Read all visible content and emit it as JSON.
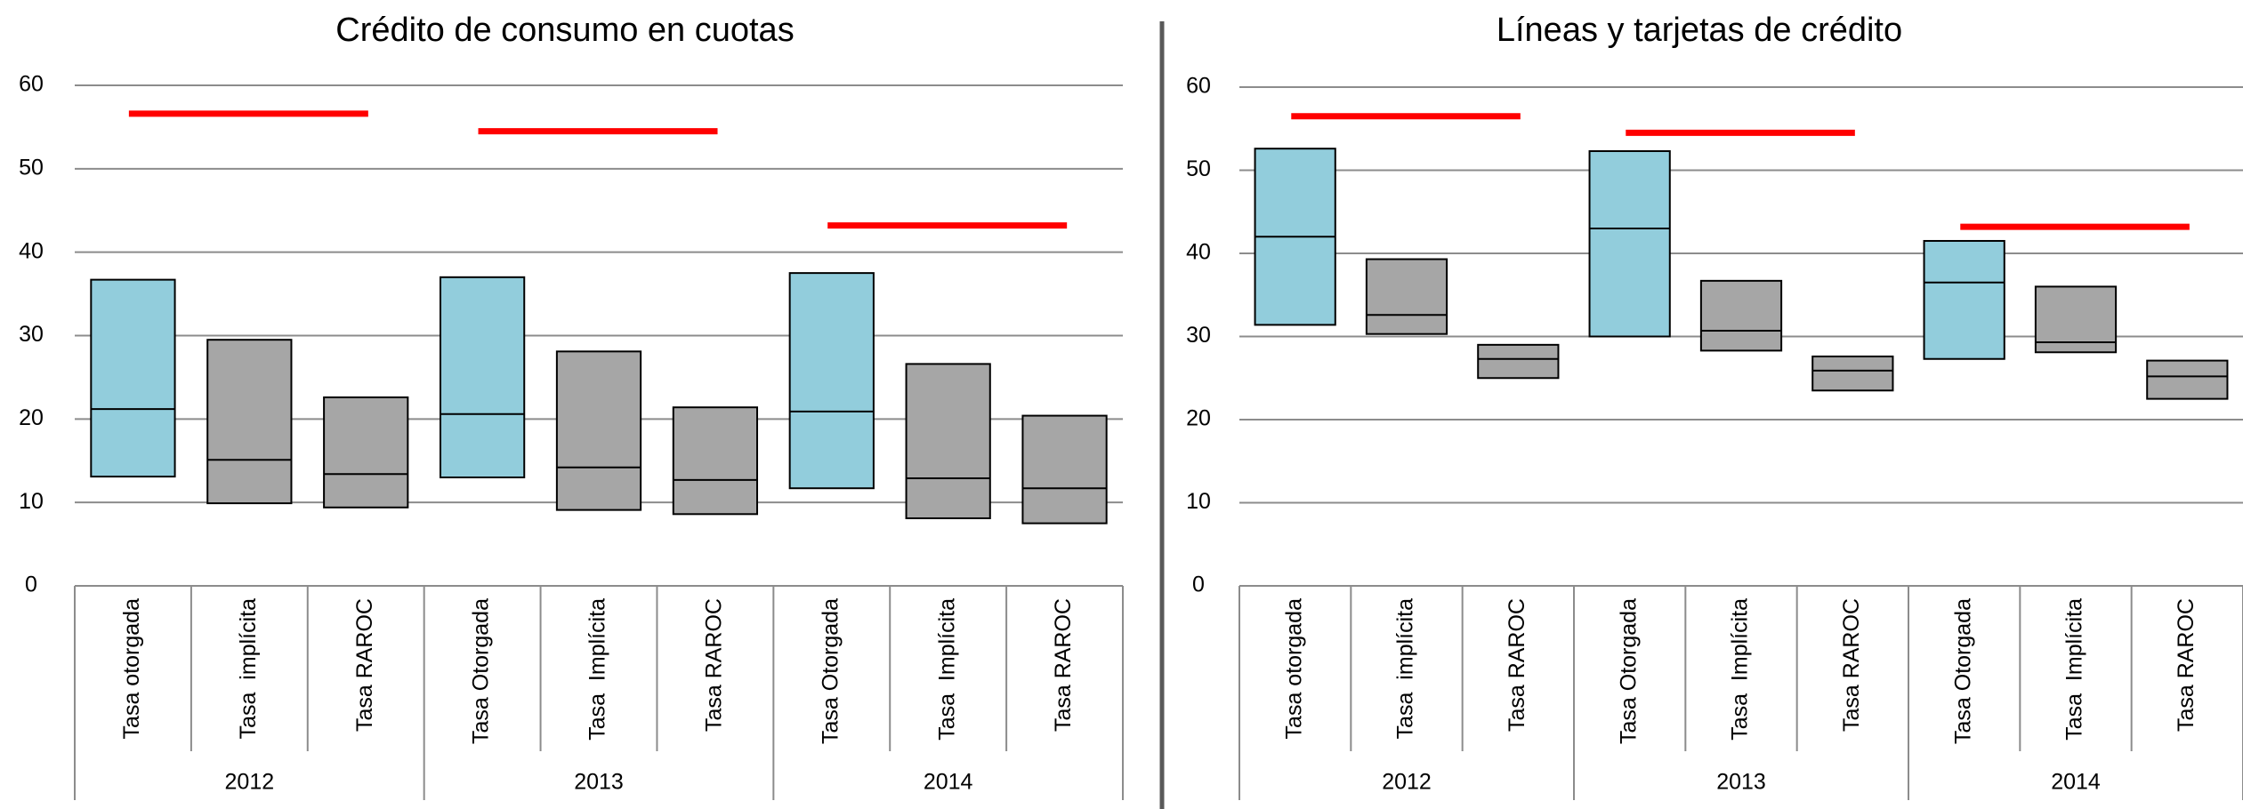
{
  "chart_data": [
    {
      "type": "floating-box",
      "title": "Crédito de consumo en cuotas",
      "groups": [
        "2012",
        "2013",
        "2014"
      ],
      "categories": [
        "Tasa otorgada",
        "Tasa  implícita",
        "Tasa RAROC",
        "Tasa Otorgada",
        "Tasa  Implícita",
        "Tasa RAROC",
        "Tasa Otorgada",
        "Tasa  Implícita",
        "Tasa RAROC"
      ],
      "high": [
        36.7,
        29.5,
        22.6,
        37.0,
        28.1,
        21.4,
        37.5,
        26.6,
        20.4
      ],
      "median": [
        21.2,
        15.1,
        13.4,
        20.6,
        14.2,
        12.7,
        20.9,
        12.9,
        11.7
      ],
      "low": [
        13.1,
        9.9,
        9.4,
        13.0,
        9.1,
        8.6,
        11.7,
        8.1,
        7.5
      ],
      "box_colors": [
        "#92cddc",
        "#a6a6a6",
        "#a6a6a6",
        "#92cddc",
        "#a6a6a6",
        "#a6a6a6",
        "#92cddc",
        "#a6a6a6",
        "#a6a6a6"
      ],
      "max_rate": {
        "color": "#ff0000",
        "values": [
          56.6,
          54.5,
          43.2
        ]
      },
      "ylim": [
        0,
        60
      ],
      "yticks": [
        0,
        10,
        20,
        30,
        40,
        50,
        60
      ],
      "grid": true
    },
    {
      "type": "floating-box",
      "title": "Líneas y tarjetas de crédito",
      "groups": [
        "2012",
        "2013",
        "2014"
      ],
      "categories": [
        "Tasa otorgada",
        "Tasa  implícita",
        "Tasa RAROC",
        "Tasa Otorgada",
        "Tasa  Implícita",
        "Tasa RAROC",
        "Tasa Otorgada",
        "Tasa  Implícita",
        "Tasa RAROC"
      ],
      "high": [
        52.6,
        39.3,
        29.0,
        52.3,
        36.7,
        27.6,
        41.5,
        36.0,
        27.1
      ],
      "median": [
        42.0,
        32.6,
        27.3,
        43.0,
        30.7,
        25.9,
        36.5,
        29.3,
        25.2
      ],
      "low": [
        31.4,
        30.3,
        25.0,
        30.0,
        28.3,
        23.5,
        27.3,
        28.1,
        22.5
      ],
      "box_colors": [
        "#92cddc",
        "#a6a6a6",
        "#a6a6a6",
        "#92cddc",
        "#a6a6a6",
        "#a6a6a6",
        "#92cddc",
        "#a6a6a6",
        "#a6a6a6"
      ],
      "max_rate": {
        "color": "#ff0000",
        "values": [
          56.5,
          54.5,
          43.2
        ]
      },
      "ylim": [
        0,
        60
      ],
      "yticks": [
        0,
        10,
        20,
        30,
        40,
        50,
        60
      ],
      "grid": true
    }
  ]
}
